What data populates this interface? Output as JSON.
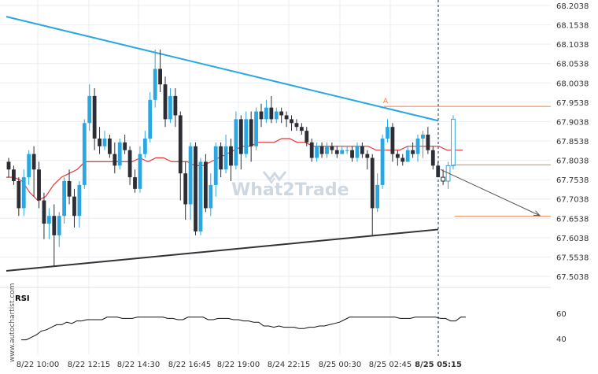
{
  "chart_data": {
    "type": "candlestick",
    "price_axis": {
      "ticks": [
        "68.2038",
        "68.1538",
        "68.1038",
        "68.0538",
        "68.0038",
        "67.9538",
        "67.9038",
        "67.8538",
        "67.8038",
        "67.7538",
        "67.7038",
        "67.6538",
        "67.6038",
        "67.5538",
        "67.5038"
      ],
      "range": [
        67.4788,
        68.2038
      ]
    },
    "time_axis": {
      "ticks": [
        "8/22 10:00",
        "8/22 12:15",
        "8/22 14:30",
        "8/22 16:45",
        "8/22 19:00",
        "8/24 22:15",
        "8/25 00:30",
        "8/25 02:45",
        "8/25 05:15"
      ],
      "highlighted": "8/25 05:15"
    },
    "rsi": {
      "label": "RSI",
      "ticks": [
        "60",
        "40"
      ],
      "range": [
        30,
        70
      ],
      "values": [
        39,
        39,
        41,
        43,
        46,
        47,
        49,
        51,
        51,
        53,
        52,
        54,
        54,
        55,
        55,
        55,
        55,
        57,
        57,
        57,
        56,
        56,
        56,
        57,
        57,
        57,
        57,
        57,
        57,
        56,
        56,
        55,
        55,
        57,
        57,
        57,
        57,
        55,
        55,
        56,
        56,
        56,
        55,
        55,
        54,
        54,
        53,
        53,
        50,
        50,
        49,
        50,
        49,
        49,
        49,
        48,
        48,
        49,
        49,
        50,
        50,
        51,
        52,
        53,
        55,
        57,
        57,
        57,
        57,
        57,
        57,
        57,
        57,
        57,
        57,
        56,
        56,
        56,
        57,
        57,
        57,
        57,
        57,
        56,
        56,
        54,
        54,
        57,
        57
      ]
    },
    "candles": [
      [
        67.8,
        67.78,
        67.81,
        67.76
      ],
      [
        67.78,
        67.75,
        67.79,
        67.74
      ],
      [
        67.75,
        67.68,
        67.76,
        67.66
      ],
      [
        67.68,
        67.76,
        67.78,
        67.66
      ],
      [
        67.76,
        67.82,
        67.83,
        67.74
      ],
      [
        67.82,
        67.78,
        67.84,
        67.71
      ],
      [
        67.78,
        67.7,
        67.8,
        67.68
      ],
      [
        67.7,
        67.64,
        67.72,
        67.6
      ],
      [
        67.64,
        67.66,
        67.68,
        67.6
      ],
      [
        67.66,
        67.61,
        67.69,
        67.53
      ],
      [
        67.61,
        67.66,
        67.67,
        67.58
      ],
      [
        67.66,
        67.75,
        67.76,
        67.64
      ],
      [
        67.75,
        67.71,
        67.78,
        67.69
      ],
      [
        67.71,
        67.66,
        67.73,
        67.63
      ],
      [
        67.66,
        67.74,
        67.75,
        67.63
      ],
      [
        67.74,
        67.9,
        67.91,
        67.73
      ],
      [
        67.9,
        67.97,
        68.0,
        67.88
      ],
      [
        67.97,
        67.86,
        67.99,
        67.83
      ],
      [
        67.86,
        67.84,
        67.89,
        67.82
      ],
      [
        67.84,
        67.86,
        67.88,
        67.83
      ],
      [
        67.86,
        67.82,
        67.87,
        67.81
      ],
      [
        67.82,
        67.79,
        67.85,
        67.77
      ],
      [
        67.79,
        67.85,
        67.86,
        67.78
      ],
      [
        67.85,
        67.83,
        67.87,
        67.82
      ],
      [
        67.83,
        67.76,
        67.84,
        67.74
      ],
      [
        67.76,
        67.73,
        67.78,
        67.72
      ],
      [
        67.73,
        67.82,
        67.84,
        67.72
      ],
      [
        67.82,
        67.86,
        67.88,
        67.81
      ],
      [
        67.86,
        67.96,
        67.98,
        67.85
      ],
      [
        67.96,
        68.04,
        68.09,
        67.94
      ],
      [
        68.04,
        68.0,
        68.09,
        67.98
      ],
      [
        68.0,
        67.91,
        68.02,
        67.89
      ],
      [
        67.91,
        67.97,
        67.99,
        67.9
      ],
      [
        67.97,
        67.92,
        67.99,
        67.89
      ],
      [
        67.92,
        67.77,
        67.93,
        67.7
      ],
      [
        67.77,
        67.69,
        67.8,
        67.65
      ],
      [
        67.69,
        67.84,
        67.85,
        67.65
      ],
      [
        67.84,
        67.62,
        67.85,
        67.61
      ],
      [
        67.62,
        67.8,
        67.81,
        67.61
      ],
      [
        67.8,
        67.68,
        67.82,
        67.67
      ],
      [
        67.68,
        67.74,
        67.77,
        67.66
      ],
      [
        67.74,
        67.84,
        67.85,
        67.71
      ],
      [
        67.84,
        67.78,
        67.85,
        67.76
      ],
      [
        67.78,
        67.84,
        67.87,
        67.77
      ],
      [
        67.84,
        67.79,
        67.86,
        67.75
      ],
      [
        67.79,
        67.91,
        67.93,
        67.78
      ],
      [
        67.91,
        67.82,
        67.92,
        67.78
      ],
      [
        67.82,
        67.91,
        67.93,
        67.81
      ],
      [
        67.91,
        67.84,
        67.93,
        67.8
      ],
      [
        67.84,
        67.93,
        67.94,
        67.83
      ],
      [
        67.93,
        67.91,
        67.95,
        67.89
      ],
      [
        67.91,
        67.94,
        67.96,
        67.9
      ],
      [
        67.94,
        67.91,
        67.97,
        67.9
      ],
      [
        67.91,
        67.93,
        67.94,
        67.9
      ],
      [
        67.93,
        67.92,
        67.94,
        67.9
      ],
      [
        67.92,
        67.91,
        67.93,
        67.89
      ],
      [
        67.91,
        67.9,
        67.92,
        67.88
      ],
      [
        67.9,
        67.89,
        67.91,
        67.88
      ],
      [
        67.89,
        67.88,
        67.9,
        67.87
      ],
      [
        67.88,
        67.85,
        67.89,
        67.84
      ],
      [
        67.85,
        67.81,
        67.86,
        67.8
      ],
      [
        67.81,
        67.84,
        67.85,
        67.8
      ],
      [
        67.84,
        67.82,
        67.85,
        67.81
      ],
      [
        67.82,
        67.84,
        67.85,
        67.81
      ],
      [
        67.84,
        67.83,
        67.85,
        67.82
      ],
      [
        67.83,
        67.82,
        67.84,
        67.81
      ],
      [
        67.82,
        67.83,
        67.84,
        67.82
      ],
      [
        67.83,
        67.83,
        67.84,
        67.82
      ],
      [
        67.83,
        67.81,
        67.84,
        67.8
      ],
      [
        67.81,
        67.84,
        67.85,
        67.8
      ],
      [
        67.84,
        67.82,
        67.85,
        67.81
      ],
      [
        67.82,
        67.81,
        67.83,
        67.78
      ],
      [
        67.81,
        67.68,
        67.82,
        67.61
      ],
      [
        67.68,
        67.74,
        67.77,
        67.67
      ],
      [
        67.74,
        67.86,
        67.87,
        67.73
      ],
      [
        67.86,
        67.89,
        67.91,
        67.85
      ],
      [
        67.89,
        67.82,
        67.9,
        67.8
      ],
      [
        67.82,
        67.81,
        67.83,
        67.79
      ],
      [
        67.81,
        67.8,
        67.82,
        67.79
      ],
      [
        67.8,
        67.83,
        67.84,
        67.8
      ],
      [
        67.83,
        67.82,
        67.85,
        67.81
      ],
      [
        67.82,
        67.86,
        67.87,
        67.8
      ],
      [
        67.86,
        67.87,
        67.88,
        67.81
      ],
      [
        67.87,
        67.83,
        67.89,
        67.82
      ],
      [
        67.83,
        67.79,
        67.84,
        67.78
      ],
      [
        67.79,
        67.76,
        67.8,
        67.76
      ],
      [
        67.76,
        67.75,
        67.78,
        67.74
      ],
      [
        67.75,
        67.79,
        67.8,
        67.73
      ],
      [
        67.79,
        67.91,
        67.92,
        67.78
      ]
    ],
    "ma_line": [
      [
        0,
        67.76
      ],
      [
        10,
        67.76
      ],
      [
        20,
        67.75
      ],
      [
        30,
        67.72
      ],
      [
        40,
        67.7
      ],
      [
        50,
        67.71
      ],
      [
        60,
        67.74
      ],
      [
        70,
        67.76
      ],
      [
        80,
        67.77
      ],
      [
        90,
        67.78
      ],
      [
        100,
        67.8
      ],
      [
        110,
        67.8
      ],
      [
        120,
        67.8
      ],
      [
        130,
        67.8
      ],
      [
        140,
        67.8
      ],
      [
        150,
        67.8
      ],
      [
        160,
        67.8
      ],
      [
        170,
        67.81
      ],
      [
        180,
        67.8
      ],
      [
        190,
        67.81
      ],
      [
        200,
        67.81
      ],
      [
        210,
        67.8
      ],
      [
        220,
        67.8
      ],
      [
        230,
        67.8
      ],
      [
        240,
        67.79
      ],
      [
        250,
        67.79
      ],
      [
        260,
        67.8
      ],
      [
        270,
        67.81
      ],
      [
        280,
        67.82
      ],
      [
        290,
        67.83
      ],
      [
        300,
        67.84
      ],
      [
        310,
        67.84
      ],
      [
        320,
        67.85
      ],
      [
        330,
        67.85
      ],
      [
        340,
        67.85
      ],
      [
        350,
        67.86
      ],
      [
        360,
        67.86
      ],
      [
        370,
        67.85
      ],
      [
        380,
        67.85
      ],
      [
        390,
        67.84
      ],
      [
        400,
        67.84
      ],
      [
        410,
        67.84
      ],
      [
        420,
        67.84
      ],
      [
        430,
        67.84
      ],
      [
        440,
        67.84
      ],
      [
        450,
        67.84
      ],
      [
        460,
        67.84
      ],
      [
        470,
        67.83
      ],
      [
        480,
        67.83
      ],
      [
        490,
        67.83
      ],
      [
        500,
        67.83
      ],
      [
        510,
        67.84
      ],
      [
        520,
        67.84
      ],
      [
        530,
        67.84
      ],
      [
        540,
        67.84
      ],
      [
        550,
        67.84
      ],
      [
        560,
        67.83
      ],
      [
        570,
        67.83
      ],
      [
        580,
        67.83
      ]
    ],
    "resistance_line": {
      "from": [
        8,
        68.175
      ],
      "to": [
        557,
        67.906
      ],
      "color": "#2aa7e0"
    },
    "support_line": {
      "from": [
        8,
        67.518
      ],
      "to": [
        557,
        67.625
      ],
      "color": "#333333"
    },
    "levels": [
      {
        "price": 67.943,
        "from": 488,
        "to": 700,
        "color": "#f08040"
      },
      {
        "price": 67.792,
        "from": 575,
        "to": 700,
        "color": "#f08040"
      },
      {
        "price": 67.659,
        "from": 578,
        "to": 700,
        "color": "#f08040"
      }
    ],
    "marker_label": "A",
    "forecast_arrow": {
      "from": [
        560,
        67.78
      ],
      "to": [
        686,
        67.661
      ]
    },
    "current_time_x": 557,
    "colors": {
      "up": "#2aa7e0",
      "down": "#2d2d35",
      "ma": "#e23838",
      "levels": "#f08040",
      "grid": "#e9edf2"
    }
  },
  "watermark": "What2Trade",
  "side_text": "www.autochartist.com"
}
